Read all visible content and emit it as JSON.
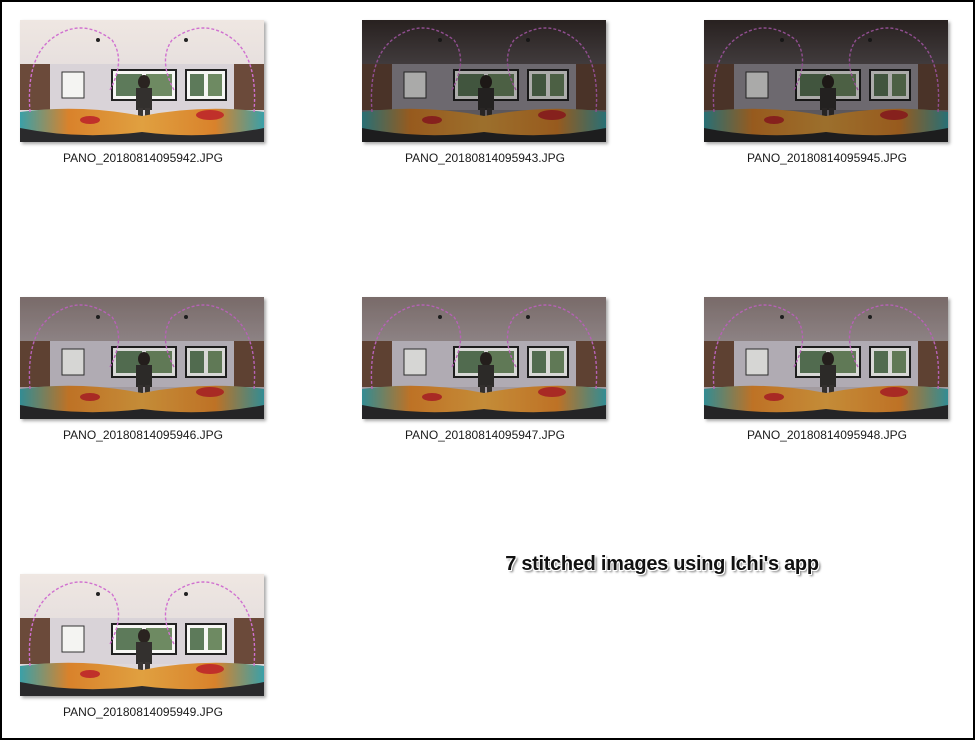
{
  "files": [
    {
      "name": "PANO_20180814095942.JPG",
      "exposure": "bright"
    },
    {
      "name": "PANO_20180814095943.JPG",
      "exposure": "dark"
    },
    {
      "name": "PANO_20180814095945.JPG",
      "exposure": "dark"
    },
    {
      "name": "PANO_20180814095946.JPG",
      "exposure": "medium"
    },
    {
      "name": "PANO_20180814095947.JPG",
      "exposure": "medium"
    },
    {
      "name": "PANO_20180814095948.JPG",
      "exposure": "medium"
    },
    {
      "name": "PANO_20180814095949.JPG",
      "exposure": "bright"
    }
  ],
  "caption": "7 stitched images using Ichi's app",
  "colors": {
    "frame_border": "#000000",
    "background": "#ffffff",
    "seam_line": "#d070d0",
    "floor_orange": "#d9822b",
    "floor_red": "#c0302a",
    "rug_teal": "#3aa0a8"
  }
}
